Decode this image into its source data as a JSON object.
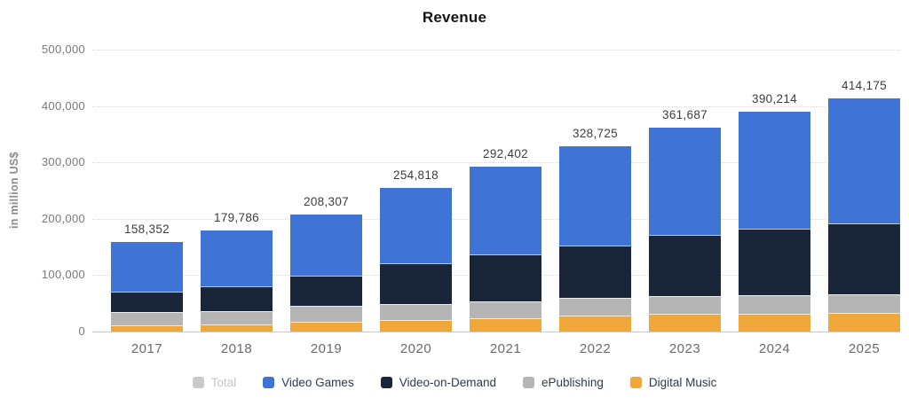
{
  "title": "Revenue",
  "y_axis_title": "in million US$",
  "legend": [
    {
      "label": "Total",
      "color": "#c9c9c9",
      "disabled": true
    },
    {
      "label": "Video Games",
      "color": "#3f74d6",
      "disabled": false
    },
    {
      "label": "Video-on-Demand",
      "color": "#19263a",
      "disabled": false
    },
    {
      "label": "ePublishing",
      "color": "#b5b5b5",
      "disabled": false
    },
    {
      "label": "Digital Music",
      "color": "#f0a73a",
      "disabled": false
    }
  ],
  "chart_data": {
    "type": "bar",
    "stacked": true,
    "title": "Revenue",
    "xlabel": "",
    "ylabel": "in million US$",
    "categories": [
      "2017",
      "2018",
      "2019",
      "2020",
      "2021",
      "2022",
      "2023",
      "2024",
      "2025"
    ],
    "series": [
      {
        "name": "Digital Music",
        "color": "#f0a73a",
        "values": [
          10500,
          12500,
          17500,
          21000,
          23600,
          28000,
          31000,
          32000,
          33500
        ]
      },
      {
        "name": "ePublishing",
        "color": "#b5b5b5",
        "values": [
          24500,
          24000,
          29000,
          27800,
          30400,
          32000,
          32000,
          32200,
          33000
        ]
      },
      {
        "name": "Video-on-Demand",
        "color": "#19263a",
        "values": [
          35852,
          43000,
          52000,
          71500,
          82500,
          93000,
          108500,
          118200,
          125800
        ]
      },
      {
        "name": "Video Games",
        "color": "#3f74d6",
        "values": [
          87500,
          100286,
          109807,
          134518,
          155902,
          175725,
          190187,
          207814,
          221875
        ]
      }
    ],
    "totals": [
      158352,
      179786,
      208307,
      254818,
      292402,
      328725,
      361687,
      390214,
      414175
    ],
    "total_labels": [
      "158,352",
      "179,786",
      "208,307",
      "254,818",
      "292,402",
      "328,725",
      "361,687",
      "390,214",
      "414,175"
    ],
    "ylim": [
      0,
      500000
    ],
    "y_ticks": [
      0,
      100000,
      200000,
      300000,
      400000,
      500000
    ],
    "grid": "horizontal-dotted",
    "legend_position": "bottom",
    "stack_order_bottom_to_top": [
      "Digital Music",
      "ePublishing",
      "Video-on-Demand",
      "Video Games"
    ]
  }
}
